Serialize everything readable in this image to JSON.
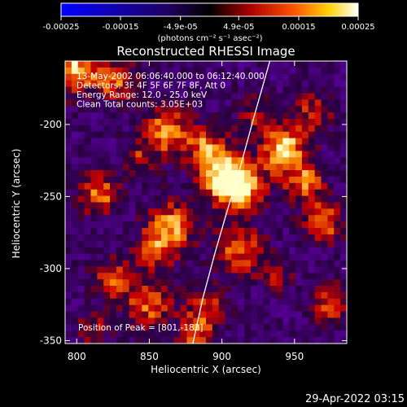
{
  "colorbar": {
    "ticks": [
      {
        "v": -0.00025,
        "label": "-0.00025"
      },
      {
        "v": -0.00015,
        "label": "-0.00015"
      },
      {
        "v": -4.9e-05,
        "label": "-4.9e-05"
      },
      {
        "v": 4.9e-05,
        "label": "4.9e-05"
      },
      {
        "v": 0.00015,
        "label": "0.00015"
      },
      {
        "v": 0.00025,
        "label": "0.00025"
      }
    ],
    "range": [
      -0.00025,
      0.00025
    ],
    "units_label": "(photons cm⁻² s⁻¹ asec⁻²)",
    "colormap": "blue-black-red-yellow-white"
  },
  "title": "Reconstructed RHESSI Image",
  "annotations": [
    "13-May-2002 06:06:40.000 to 06:12:40.000",
    "Detectors: 3F 4F 5F 6F 7F 8F, Att 0",
    "Energy Range: 12.0 - 25.0 keV",
    "Clean     Total counts: 3.05E+03"
  ],
  "peak_label": "Position of Peak = [801,-183]",
  "footer_timestamp": "29-Apr-2022 03:15",
  "chart_data": {
    "type": "heatmap",
    "title": "Reconstructed RHESSI Image",
    "xlabel": "Heliocentric X (arcsec)",
    "ylabel": "Heliocentric Y (arcsec)",
    "xlim": [
      792,
      986
    ],
    "ylim": [
      -352,
      -156
    ],
    "x_ticks": [
      800,
      850,
      900,
      950
    ],
    "y_ticks": [
      -200,
      -250,
      -300,
      -350
    ],
    "grid": false,
    "peak": [
      801,
      -183
    ],
    "limb_curve": {
      "x": [
        880,
        887,
        895,
        903,
        912,
        922,
        933
      ],
      "y": [
        -352,
        -320,
        -290,
        -262,
        -232,
        -195,
        -156
      ]
    }
  }
}
